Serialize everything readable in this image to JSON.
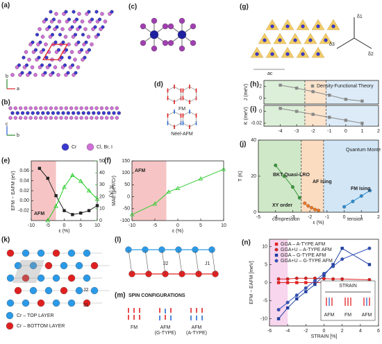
{
  "panels": {
    "a": "(a)",
    "b": "(b)",
    "c": "(c)",
    "d": "(d)",
    "e": "(e)",
    "f": "(f)",
    "g": "(g)",
    "h": "(h)",
    "i": "(i)",
    "j": "(j)",
    "k": "(k)",
    "l": "(l)",
    "m": "(m)",
    "n": "(n)"
  },
  "labels": {
    "cr": "Cr",
    "halide": "Cl, Br, I",
    "fm": "FM",
    "neel": "Néel-AFM",
    "top": "Cr – TOP LAYER",
    "bottom": "Cr – BOTTOM LAYER",
    "spin": "SPIN CONFIGURATIONS",
    "m_labels": [
      "FM",
      "AFM",
      "AFM"
    ],
    "m_sub": [
      "(G-TYPE)",
      "(A-TYPE)"
    ],
    "axes": [
      "a",
      "b",
      "c"
    ],
    "deltas": [
      "δ1",
      "δ2",
      "δ3"
    ],
    "ac": "ac",
    "j": [
      "J1",
      "J2"
    ]
  },
  "chart_data": [
    {
      "type": "line",
      "panel": "(e)",
      "xlabel": "ε (%)",
      "ylabel": "EFM − EAFM (eV)",
      "y2label": "Tc (K)",
      "xlim": [
        -10,
        10
      ],
      "xticks": [
        -10,
        -5,
        0,
        5,
        10
      ],
      "ylim": [
        -0.04,
        0.08
      ],
      "yticks": [
        -0.02,
        {
          "value": 0,
          "label": "0.00"
        },
        0.02,
        0.04,
        0.06
      ],
      "y2lim": [
        0,
        50
      ],
      "y2ticks": [
        0,
        10,
        20,
        30,
        40,
        50
      ],
      "regions": [
        {
          "x": [
            -10,
            -2.5
          ],
          "color": "#f6c4c4",
          "label": "AFM"
        }
      ],
      "series": [
        {
          "color": "#222222",
          "marker": "square",
          "x": [
            -7.5,
            -5,
            -2.5,
            0,
            2.5,
            5,
            7.5,
            10
          ],
          "values": [
            0.065,
            0.045,
            0.01,
            -0.02,
            -0.028,
            -0.025,
            -0.02,
            -0.01
          ]
        },
        {
          "color": "#22cc22",
          "marker": "triangle",
          "axis": "y2",
          "x": [
            -5,
            -2.5,
            0,
            2.5,
            5,
            7.5,
            10
          ],
          "values": [
            0,
            12,
            28,
            38,
            33,
            25,
            18
          ]
        }
      ]
    },
    {
      "type": "line",
      "panel": "(f)",
      "xlabel": "ε (%)",
      "ylabel": "MAE (μeV/Cr)",
      "xlim": [
        -10,
        10
      ],
      "xticks": [
        -10,
        -5,
        0,
        5,
        10
      ],
      "ylim": [
        -100,
        150
      ],
      "yticks": [
        -100,
        -50,
        0,
        50,
        100,
        150
      ],
      "regions": [
        {
          "x": [
            -10,
            -2.5
          ],
          "color": "#f6c4c4",
          "label": "AFM"
        }
      ],
      "series": [
        {
          "color": "#33cc33",
          "marker": "triangle",
          "x": [
            -10,
            -5,
            -2,
            0,
            5,
            10
          ],
          "values": [
            -75,
            -30,
            20,
            35,
            75,
            115
          ]
        }
      ]
    },
    {
      "type": "line",
      "panel": "(h)",
      "ylabel": "J (meV)",
      "xlim": [
        -5,
        2
      ],
      "ylim": [
        -1,
        3
      ],
      "yticks": [
        0,
        2
      ],
      "regions": [
        {
          "x": [
            -5,
            -2.5
          ],
          "color": "#dcefd8"
        },
        {
          "x": [
            -2.5,
            -1.2
          ],
          "color": "#fbe3cc"
        },
        {
          "x": [
            -1.2,
            2
          ],
          "color": "#dcebf7"
        }
      ],
      "series": [
        {
          "name": "Density-Functional Theory",
          "color": "#888888",
          "marker": "square",
          "x": [
            -4,
            -3,
            -2,
            -1,
            0,
            1
          ],
          "values": [
            2.2,
            1.7,
            1.1,
            0.5,
            -0.2,
            -0.5
          ]
        }
      ]
    },
    {
      "type": "line",
      "panel": "(i)",
      "ylabel": "K (meV)",
      "xlim": [
        -5,
        2
      ],
      "xticks": [
        -4,
        -3,
        -2,
        -1,
        0,
        1,
        2
      ],
      "ylim": [
        -0.025,
        0.01
      ],
      "yticks": [
        -0.02,
        0
      ],
      "regions": [
        {
          "x": [
            -5,
            -2.5
          ],
          "color": "#dcefd8"
        },
        {
          "x": [
            -2.5,
            -1.2
          ],
          "color": "#fbe3cc"
        },
        {
          "x": [
            -1.2,
            2
          ],
          "color": "#dcebf7"
        }
      ],
      "series": [
        {
          "color": "#888888",
          "marker": "square",
          "x": [
            -4,
            -3,
            -2,
            -1,
            0,
            1
          ],
          "values": [
            0.005,
            0,
            -0.005,
            -0.01,
            -0.015,
            -0.02
          ]
        }
      ]
    },
    {
      "type": "line",
      "panel": "(j)",
      "xlabel": "ε (%)",
      "ylabel": "T (K)",
      "xlim": [
        -5,
        2
      ],
      "xticks": [
        -5,
        -4,
        -3,
        -2,
        -1,
        0,
        1,
        2
      ],
      "ylim": [
        0,
        40
      ],
      "yticks": [
        0,
        20,
        40
      ],
      "regions": [
        {
          "x": [
            -5,
            -2.5
          ],
          "color": "#cfe8c8"
        },
        {
          "x": [
            -2.5,
            -1.2
          ],
          "color": "#fbdcc0"
        },
        {
          "x": [
            -1.2,
            2
          ],
          "color": "#d2e6f6"
        }
      ],
      "annotations": [
        "BKT Quasi-LRO",
        "XY order",
        "AF Ising",
        "FM Ising",
        "compression",
        "tension",
        "Quantum Monte Carlo"
      ],
      "series": [
        {
          "color": "#3a9a3a",
          "marker": "circle",
          "x": [
            -4,
            -3.5,
            -3,
            -2.6
          ],
          "values": [
            26,
            20,
            14,
            8
          ]
        },
        {
          "color": "#ee7722",
          "marker": "circle",
          "x": [
            -2.3,
            -2.1,
            -1.9,
            -1.7,
            -1.5
          ],
          "values": [
            5,
            3.5,
            2.5,
            1.5,
            1
          ]
        },
        {
          "color": "#2b8fd4",
          "marker": "circle",
          "x": [
            0,
            0.5,
            1,
            1.5
          ],
          "values": [
            3,
            6,
            9,
            12
          ]
        }
      ]
    },
    {
      "type": "line",
      "panel": "(n)",
      "xlabel": "STRAIN [%]",
      "ylabel": "EFM − EAFM [meV]",
      "xlim": [
        -6,
        6
      ],
      "xticks": [
        -6,
        -4,
        -2,
        0,
        2,
        4,
        6
      ],
      "ylim": [
        -12,
        12
      ],
      "yticks": [
        -10,
        -5,
        0,
        5,
        10
      ],
      "regions": [
        {
          "x": [
            -6,
            -4
          ],
          "color": "#f7d6ee"
        }
      ],
      "inset": {
        "title": "STRAIN",
        "labels": [
          "AFM",
          "FM",
          "AFM"
        ]
      },
      "series": [
        {
          "name": "GGA – A-TYPE AFM",
          "color": "#e02020",
          "marker": "square",
          "x": [
            -5,
            -4,
            -3,
            -2,
            -1,
            0,
            1,
            2,
            5
          ],
          "values": [
            0,
            0,
            0,
            0,
            0,
            0,
            0,
            0,
            0
          ]
        },
        {
          "name": "GGA+U – A-TYPE AFM",
          "color": "#e02020",
          "marker": "circle",
          "x": [
            -5,
            -4,
            -3,
            -2,
            -1,
            0,
            1,
            2,
            5
          ],
          "values": [
            1,
            1,
            1.2,
            1.2,
            1.2,
            1.1,
            1,
            1,
            0.8
          ]
        },
        {
          "name": "GGA – G-TYPE AFM",
          "color": "#1f3fa0",
          "marker": "square",
          "x": [
            -5,
            -4,
            -3,
            -2,
            -1,
            0,
            1,
            2,
            5
          ],
          "values": [
            -10,
            -7,
            -4.5,
            -2.5,
            -0.5,
            2,
            5,
            9.5,
            5
          ]
        },
        {
          "name": "GGA+U – G-TYPE AFM",
          "color": "#3050c0",
          "marker": "circle",
          "x": [
            -5,
            -4,
            -3,
            -2,
            -1,
            0,
            1,
            2,
            5
          ],
          "values": [
            -7.5,
            -5.5,
            -3.5,
            -1.5,
            0.5,
            2.5,
            4.5,
            6.5,
            9.5
          ]
        }
      ]
    }
  ]
}
